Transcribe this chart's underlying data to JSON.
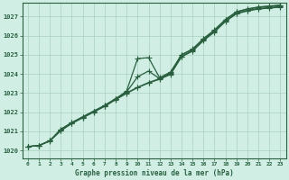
{
  "xlabel": "Graphe pression niveau de la mer (hPa)",
  "xlim": [
    -0.5,
    23.5
  ],
  "ylim": [
    1019.6,
    1027.7
  ],
  "yticks": [
    1020,
    1021,
    1022,
    1023,
    1024,
    1025,
    1026,
    1027
  ],
  "xticks": [
    0,
    1,
    2,
    3,
    4,
    5,
    6,
    7,
    8,
    9,
    10,
    11,
    12,
    13,
    14,
    15,
    16,
    17,
    18,
    19,
    20,
    21,
    22,
    23
  ],
  "background_color": "#d0eee4",
  "grid_color": "#a8cfc0",
  "line_color": "#2a6040",
  "lines": [
    [
      1020.2,
      1020.25,
      1020.5,
      1021.1,
      1021.5,
      1021.8,
      1022.1,
      1022.4,
      1022.75,
      1023.1,
      1024.75,
      1024.85,
      1023.85,
      1024.1,
      1025.0,
      1025.3,
      1025.85,
      1026.3,
      1026.85,
      1027.25,
      1027.4,
      1027.5,
      1027.55,
      1027.55
    ],
    [
      1020.2,
      1020.25,
      1020.5,
      1021.1,
      1021.5,
      1021.8,
      1022.1,
      1022.4,
      1022.75,
      1023.1,
      1023.4,
      1023.65,
      1023.85,
      1024.1,
      1025.0,
      1025.3,
      1025.85,
      1026.3,
      1026.85,
      1027.25,
      1027.4,
      1027.5,
      1027.55,
      1027.55
    ],
    [
      1020.2,
      1020.25,
      1020.5,
      1021.05,
      1021.45,
      1021.75,
      1022.05,
      1022.35,
      1022.7,
      1023.05,
      1023.35,
      1023.6,
      1023.8,
      1024.05,
      1024.95,
      1025.25,
      1025.8,
      1026.25,
      1026.8,
      1027.2,
      1027.35,
      1027.45,
      1027.5,
      1027.5
    ],
    [
      1020.2,
      1020.25,
      1020.5,
      1021.05,
      1021.45,
      1021.75,
      1022.05,
      1022.35,
      1022.7,
      1023.05,
      1023.35,
      1023.6,
      1023.8,
      1024.05,
      1024.95,
      1025.25,
      1025.8,
      1026.25,
      1026.8,
      1027.2,
      1027.35,
      1027.45,
      1027.5,
      1027.5
    ]
  ],
  "marker": "+",
  "markersize": 4,
  "linewidth": 0.9
}
